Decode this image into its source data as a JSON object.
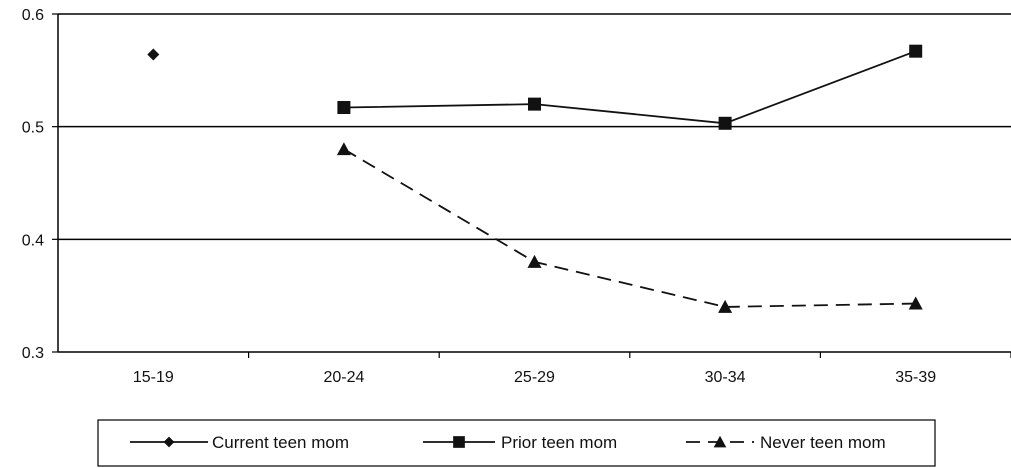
{
  "chart_data": {
    "type": "line",
    "categories": [
      "15-19",
      "20-24",
      "25-29",
      "30-34",
      "35-39"
    ],
    "ylim": [
      0.3,
      0.6
    ],
    "yticks": [
      0.3,
      0.4,
      0.5,
      0.6
    ],
    "ytick_labels": [
      "0.3",
      "0.4",
      "0.5",
      "0.6"
    ],
    "grid": true,
    "legend_position": "bottom",
    "series": [
      {
        "name": "Current teen mom",
        "marker": "diamond",
        "line": "solid",
        "values": [
          0.564,
          null,
          null,
          null,
          null
        ]
      },
      {
        "name": "Prior teen mom",
        "marker": "square",
        "line": "solid",
        "values": [
          null,
          0.517,
          0.52,
          0.503,
          0.567
        ]
      },
      {
        "name": "Never teen mom",
        "marker": "triangle",
        "line": "dashed",
        "values": [
          null,
          0.48,
          0.38,
          0.34,
          0.343
        ]
      }
    ]
  }
}
